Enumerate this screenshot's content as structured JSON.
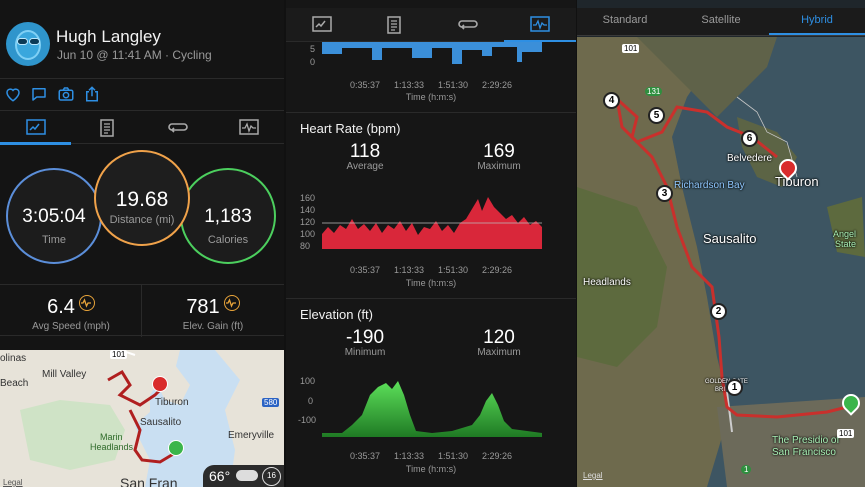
{
  "profile": {
    "name": "Hugh Langley",
    "subtitle": "Jun 10 @ 11:41 AM · Cycling"
  },
  "circles": {
    "time": {
      "value": "3:05:04",
      "label": "Time",
      "color": "#5b8ed9"
    },
    "distance": {
      "value": "19.68",
      "label": "Distance (mi)",
      "color": "#f0a24a"
    },
    "calories": {
      "value": "1,183",
      "label": "Calories",
      "color": "#4ccf5e"
    }
  },
  "stats": [
    {
      "value": "6.4",
      "label": "Avg Speed (mph)"
    },
    {
      "value": "781",
      "label": "Elev. Gain (ft)"
    }
  ],
  "map1": {
    "places": [
      "olinas",
      "Beach",
      "Mill Valley",
      "Tiburon",
      "Sausalito",
      "Marin",
      "Headlands",
      "Emeryville",
      "San Fran"
    ],
    "shields": [
      "101",
      "580"
    ],
    "legal": "Legal"
  },
  "weather": {
    "temp": "66°",
    "wind": "16"
  },
  "charts": {
    "top": {
      "ticks": [
        "5",
        "0"
      ],
      "times": [
        "0:35:37",
        "1:13:33",
        "1:51:30",
        "2:29:26"
      ],
      "xtitle": "Time (h:m:s)"
    },
    "heart": {
      "title": "Heart Rate (bpm)",
      "avg_value": "118",
      "avg_label": "Average",
      "max_value": "169",
      "max_label": "Maximum",
      "yticks": [
        "160",
        "140",
        "120",
        "100",
        "80"
      ],
      "times": [
        "0:35:37",
        "1:13:33",
        "1:51:30",
        "2:29:26"
      ],
      "xtitle": "Time (h:m:s)",
      "color": "#d9273a"
    },
    "elev": {
      "title": "Elevation (ft)",
      "min_value": "-190",
      "min_label": "Minimum",
      "max_value": "120",
      "max_label": "Maximum",
      "yticks": [
        "100",
        "0",
        "-100"
      ],
      "times": [
        "0:35:37",
        "1:13:33",
        "1:51:30",
        "2:29:26"
      ],
      "xtitle": "Time (h:m:s)",
      "color": "#3ecf3a"
    }
  },
  "map_types": [
    "Standard",
    "Satellite",
    "Hybrid"
  ],
  "map3": {
    "places": {
      "belvedere": "Belvedere",
      "tiburon": "Tiburon",
      "richardson": "Richardson Bay",
      "sausalito": "Sausalito",
      "headlands": "Headlands",
      "golden_gate": "GOLDEN GATE",
      "golden_gate2": "BRI",
      "angel": "Angel",
      "angel2": "State",
      "presidio": "The Presidio of",
      "presidio2": "San Francisco"
    },
    "markers": [
      "1",
      "2",
      "3",
      "4",
      "5",
      "6"
    ],
    "shields": [
      "101",
      "131",
      "101",
      "1"
    ],
    "legal": "Legal"
  }
}
